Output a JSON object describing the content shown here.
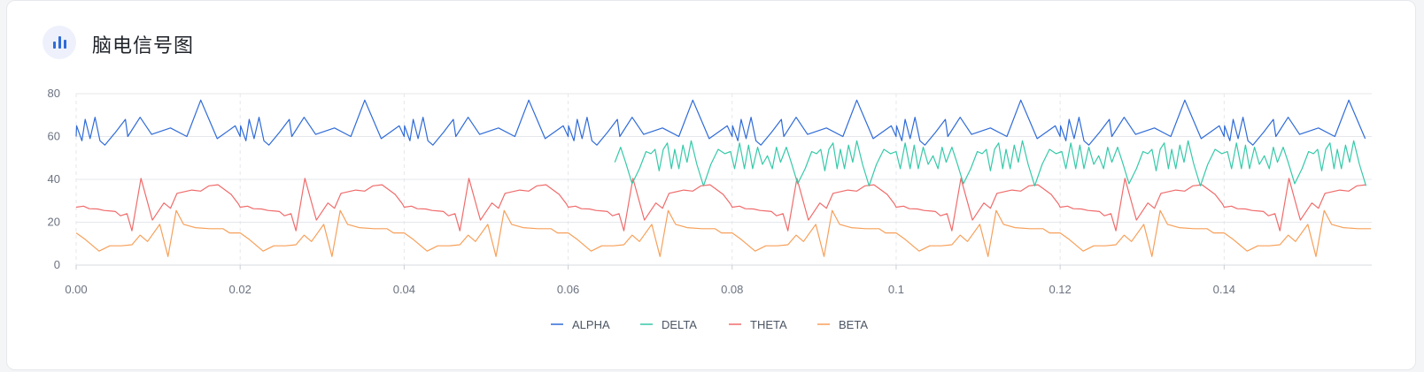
{
  "header": {
    "title": "脑电信号图"
  },
  "colors": {
    "alpha": "#2f6bd8",
    "delta": "#36c9a9",
    "theta": "#f06b6b",
    "beta": "#f7a05a",
    "grid": "#e5e7eb"
  },
  "chart_data": {
    "type": "line",
    "title": "",
    "xlabel": "",
    "ylabel": "",
    "xlim": [
      0,
      0.158
    ],
    "ylim": [
      0,
      80
    ],
    "x_ticks": [
      "0.00",
      "0.02",
      "0.04",
      "0.06",
      "0.08",
      "0.1",
      "0.12",
      "0.14"
    ],
    "y_ticks": [
      "0",
      "20",
      "40",
      "60",
      "80"
    ],
    "grid": true,
    "legend": "bottom-center",
    "series": [
      {
        "name": "ALPHA",
        "color_key": "alpha"
      },
      {
        "name": "DELTA",
        "color_key": "delta"
      },
      {
        "name": "THETA",
        "color_key": "theta"
      },
      {
        "name": "BETA",
        "color_key": "beta"
      }
    ]
  }
}
